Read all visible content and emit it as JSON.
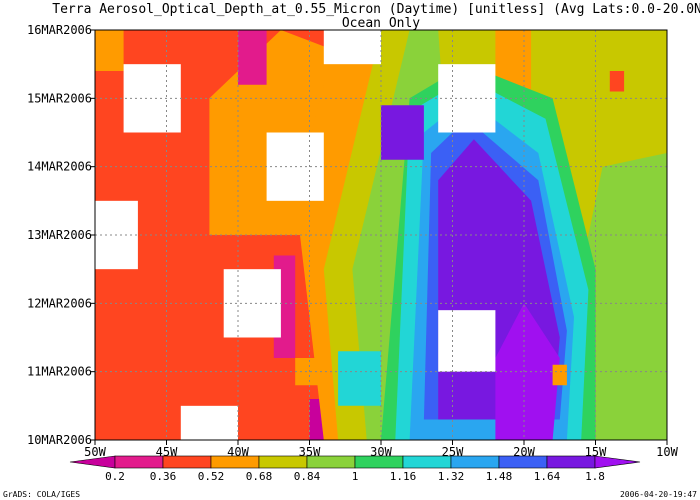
{
  "chart_data": {
    "type": "heatmap",
    "title": "Terra Aerosol_Optical_Depth_at_0.55_Micron (Daytime) [unitless] (Avg Lats:0.0-20.0N)",
    "subtitle": "Ocean Only",
    "x_ticks": [
      "50W",
      "45W",
      "40W",
      "35W",
      "30W",
      "25W",
      "20W",
      "15W",
      "10W"
    ],
    "y_ticks": [
      "10MAR2006",
      "11MAR2006",
      "12MAR2006",
      "13MAR2006",
      "14MAR2006",
      "15MAR2006",
      "16MAR2006"
    ],
    "xlim": [
      -50,
      -10
    ],
    "ylim": [
      "10MAR2006",
      "16MAR2006"
    ],
    "colorbar_labels": [
      "0.2",
      "0.36",
      "0.52",
      "0.68",
      "0.84",
      "1",
      "1.16",
      "1.32",
      "1.48",
      "1.64",
      "1.8"
    ],
    "colorbar_colors": [
      "#c8009c",
      "#e21b8c",
      "#ff4520",
      "#ff9b00",
      "#c8c800",
      "#8ad23a",
      "#2fd25e",
      "#22d6d6",
      "#2aa6f0",
      "#3b60f5",
      "#7818e0",
      "#a010f0"
    ],
    "grid": true,
    "footer_left": "GrADS: COLA/IGES",
    "footer_right": "2006-04-20-19:47"
  }
}
